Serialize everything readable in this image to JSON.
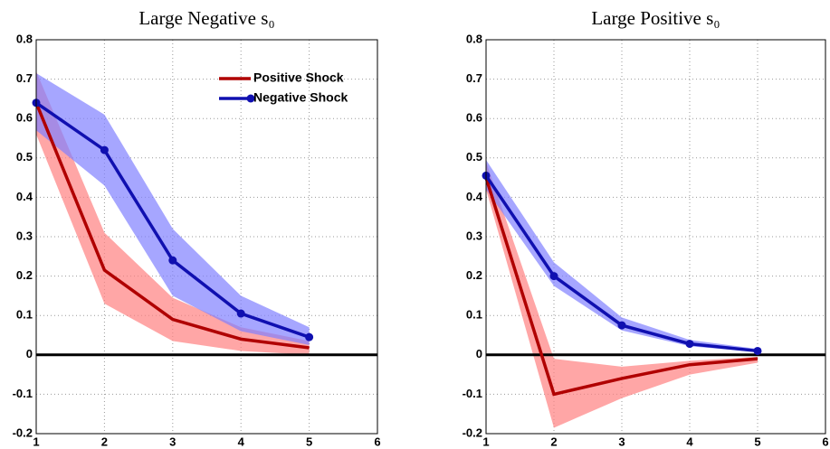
{
  "chart_data": [
    {
      "type": "line",
      "title": "Large Negative s₀",
      "x": [
        1,
        2,
        3,
        4,
        5
      ],
      "xlim": [
        1,
        6
      ],
      "xticks": [
        1,
        2,
        3,
        4,
        5,
        6
      ],
      "ylim": [
        -0.2,
        0.8
      ],
      "yticks": [
        -0.2,
        -0.1,
        0,
        0.1,
        0.2,
        0.3,
        0.4,
        0.5,
        0.6,
        0.7,
        0.8
      ],
      "grid": true,
      "reference_line": 0,
      "legend": "upper right",
      "series": [
        {
          "name": "Positive Shock",
          "color": "#b00000",
          "band_color": "#ff8080",
          "marker": false,
          "values": [
            0.64,
            0.215,
            0.09,
            0.04,
            0.018
          ],
          "lower": [
            0.56,
            0.13,
            0.035,
            0.01,
            0.0
          ],
          "upper": [
            0.72,
            0.31,
            0.145,
            0.07,
            0.035
          ]
        },
        {
          "name": "Negative Shock",
          "color": "#1010b0",
          "band_color": "#8080ff",
          "marker": true,
          "values": [
            0.64,
            0.52,
            0.24,
            0.105,
            0.045
          ],
          "lower": [
            0.57,
            0.43,
            0.15,
            0.06,
            0.025
          ],
          "upper": [
            0.715,
            0.61,
            0.32,
            0.15,
            0.07
          ]
        }
      ]
    },
    {
      "type": "line",
      "title": "Large Positive s₀",
      "x": [
        1,
        2,
        3,
        4,
        5
      ],
      "xlim": [
        1,
        6
      ],
      "xticks": [
        1,
        2,
        3,
        4,
        5,
        6
      ],
      "ylim": [
        -0.2,
        0.8
      ],
      "yticks": [
        -0.2,
        -0.1,
        0,
        0.1,
        0.2,
        0.3,
        0.4,
        0.5,
        0.6,
        0.7,
        0.8
      ],
      "grid": true,
      "reference_line": 0,
      "series": [
        {
          "color": "#b00000",
          "band_color": "#ff8080",
          "marker": false,
          "values": [
            0.45,
            -0.1,
            -0.06,
            -0.025,
            -0.01
          ],
          "lower": [
            0.42,
            -0.185,
            -0.11,
            -0.05,
            -0.02
          ],
          "upper": [
            0.49,
            -0.01,
            -0.03,
            -0.015,
            -0.005
          ]
        },
        {
          "color": "#1010b0",
          "band_color": "#8080ff",
          "marker": true,
          "values": [
            0.455,
            0.2,
            0.075,
            0.028,
            0.01
          ],
          "lower": [
            0.42,
            0.175,
            0.062,
            0.022,
            0.007
          ],
          "upper": [
            0.495,
            0.235,
            0.095,
            0.038,
            0.015
          ]
        }
      ]
    }
  ]
}
